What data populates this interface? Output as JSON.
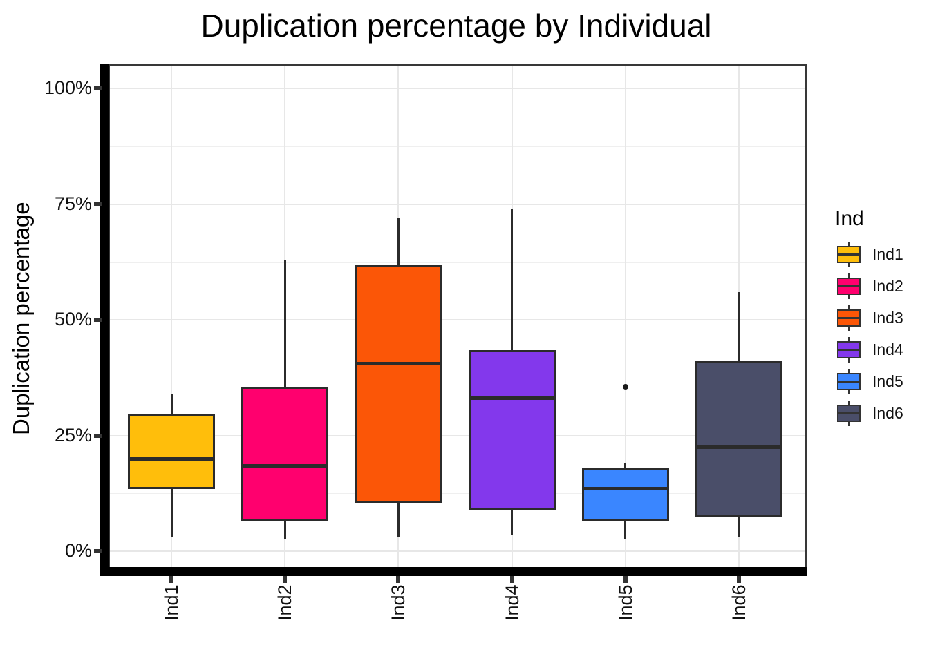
{
  "title": "Duplication percentage by Individual",
  "y_axis": {
    "label": "Duplication percentage",
    "ticks": [
      {
        "value": 0,
        "label": "0%"
      },
      {
        "value": 25,
        "label": "25%"
      },
      {
        "value": 50,
        "label": "50%"
      },
      {
        "value": 75,
        "label": "75%"
      },
      {
        "value": 100,
        "label": "100%"
      }
    ],
    "minor_grid_values": [
      12.5,
      37.5,
      62.5,
      87.5
    ]
  },
  "x_axis": {
    "categories": [
      "Ind1",
      "Ind2",
      "Ind3",
      "Ind4",
      "Ind5",
      "Ind6"
    ]
  },
  "legend": {
    "title": "Ind",
    "items": [
      {
        "label": "Ind1",
        "color": "#FFBE0B"
      },
      {
        "label": "Ind2",
        "color": "#FF006E"
      },
      {
        "label": "Ind3",
        "color": "#FB5607"
      },
      {
        "label": "Ind4",
        "color": "#8338EC"
      },
      {
        "label": "Ind5",
        "color": "#3A86FF"
      },
      {
        "label": "Ind6",
        "color": "#4A4E69"
      }
    ]
  },
  "colors": {
    "axis_line": "#000000",
    "box_outline": "#2b2b2b",
    "grid_major": "#e7e7e7",
    "grid_minor": "#efefef",
    "background": "#ffffff"
  },
  "chart_data": {
    "type": "boxplot",
    "title": "Duplication percentage by Individual",
    "xlabel": "",
    "ylabel": "Duplication percentage",
    "ylim": [
      0,
      100
    ],
    "y_unit": "%",
    "grid": true,
    "legend_position": "right",
    "legend_title": "Ind",
    "categories": [
      "Ind1",
      "Ind2",
      "Ind3",
      "Ind4",
      "Ind5",
      "Ind6"
    ],
    "series": [
      {
        "name": "Ind1",
        "color": "#FFBE0B",
        "whisker_low": 3,
        "q1": 13.5,
        "median": 20,
        "q3": 29.5,
        "whisker_high": 34,
        "outliers": []
      },
      {
        "name": "Ind2",
        "color": "#FF006E",
        "whisker_low": 2.5,
        "q1": 6.5,
        "median": 18.5,
        "q3": 35.5,
        "whisker_high": 63,
        "outliers": []
      },
      {
        "name": "Ind3",
        "color": "#FB5607",
        "whisker_low": 3,
        "q1": 10.5,
        "median": 40.5,
        "q3": 62,
        "whisker_high": 72,
        "outliers": []
      },
      {
        "name": "Ind4",
        "color": "#8338EC",
        "whisker_low": 3.5,
        "q1": 9,
        "median": 33,
        "q3": 43.5,
        "whisker_high": 74,
        "outliers": []
      },
      {
        "name": "Ind5",
        "color": "#3A86FF",
        "whisker_low": 2.5,
        "q1": 6.5,
        "median": 13.5,
        "q3": 18,
        "whisker_high": 19,
        "outliers": [
          35.5
        ]
      },
      {
        "name": "Ind6",
        "color": "#4A4E69",
        "whisker_low": 3,
        "q1": 7.5,
        "median": 22.5,
        "q3": 41,
        "whisker_high": 56,
        "outliers": []
      }
    ]
  }
}
